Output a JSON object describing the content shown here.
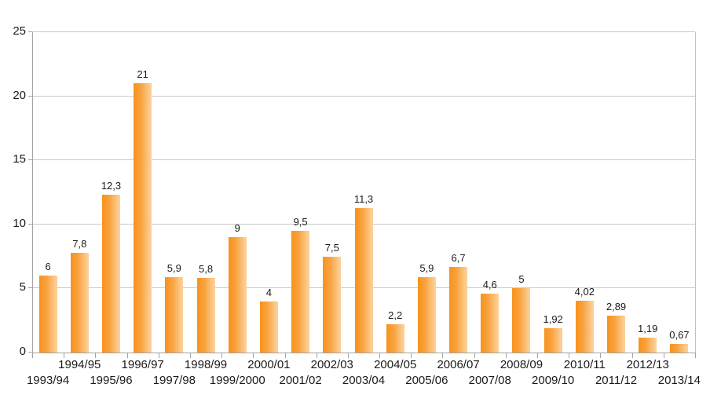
{
  "chart_data": {
    "type": "bar",
    "title": "",
    "xlabel": "",
    "ylabel": "",
    "categories": [
      "1993/94",
      "1994/95",
      "1995/96",
      "1996/97",
      "1997/98",
      "1998/99",
      "1999/2000",
      "2000/01",
      "2001/02",
      "2002/03",
      "2003/04",
      "2004/05",
      "2005/06",
      "2006/07",
      "2007/08",
      "2008/09",
      "2009/10",
      "2010/11",
      "2011/12",
      "2012/13",
      "2013/14"
    ],
    "values": [
      6,
      7.8,
      12.3,
      21,
      5.9,
      5.8,
      9,
      4,
      9.5,
      7.5,
      11.3,
      2.2,
      5.9,
      6.7,
      4.6,
      5,
      1.92,
      4.02,
      2.89,
      1.19,
      0.67
    ],
    "value_labels": [
      "6",
      "7,8",
      "12,3",
      "21",
      "5,9",
      "5,8",
      "9",
      "4",
      "9,5",
      "7,5",
      "11,3",
      "2,2",
      "5,9",
      "6,7",
      "4,6",
      "5",
      "1,92",
      "4,02",
      "2,89",
      "1,19",
      "0,67"
    ],
    "decimal_separator": ",",
    "ylim": [
      0,
      25
    ],
    "ytick_step": 5,
    "ytick_labels": [
      "0",
      "5",
      "10",
      "15",
      "20",
      "25"
    ],
    "grid": true,
    "legend_position": "none",
    "x_labels_staggered": true,
    "colors": {
      "bar_gradient_start": "#f8921d",
      "bar_gradient_end": "#fcd29c",
      "gridline": "#c9c9c9",
      "axis": "#a3a3a3",
      "text": "#1a1a1a",
      "background": "#ffffff"
    }
  }
}
